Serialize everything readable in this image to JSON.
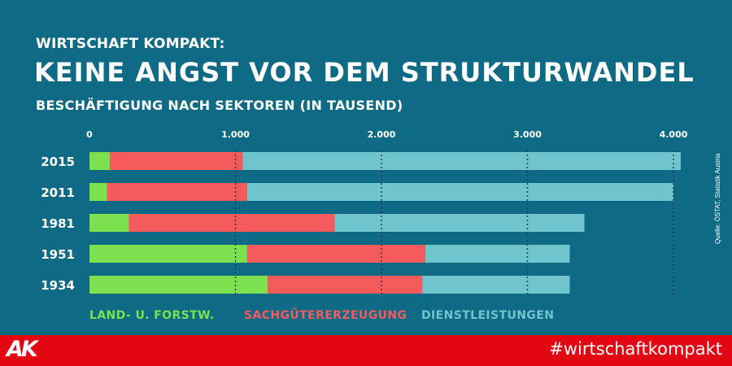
{
  "header": {
    "kicker": "WIRTSCHAFT KOMPAKT:",
    "title": "KEINE ANGST VOR DEM STRUKTURWANDEL",
    "subtitle": "BESCHÄFTIGUNG NACH SEKTOREN (IN TAUSEND)"
  },
  "chart_data": {
    "type": "bar",
    "orientation": "horizontal",
    "stacked": true,
    "categories": [
      "2015",
      "2011",
      "1981",
      "1951",
      "1934"
    ],
    "series": [
      {
        "name": "LAND- U. FORSTW.",
        "color": "#7de14d",
        "values": [
          140,
          120,
          270,
          1080,
          1220
        ]
      },
      {
        "name": "SACHGÜTERERZEUGUNG",
        "color": "#f55a5c",
        "values": [
          910,
          960,
          1410,
          1220,
          1060
        ]
      },
      {
        "name": "DIENSTLEISTUNGEN",
        "color": "#6fc4cd",
        "values": [
          3000,
          2920,
          1710,
          990,
          1010
        ]
      }
    ],
    "xticks": [
      0,
      1000,
      2000,
      3000,
      4000
    ],
    "xtick_labels": [
      "0",
      "1.000",
      "2.000",
      "3.000",
      "4.000"
    ],
    "xlim": [
      0,
      4000
    ],
    "grid": "vertical-dotted",
    "legend": "bottom"
  },
  "source": "Quelle: ÖSTAT, Statistik Austria",
  "footer": {
    "logo": "AK",
    "hashtag": "#wirtschaftkompakt"
  }
}
